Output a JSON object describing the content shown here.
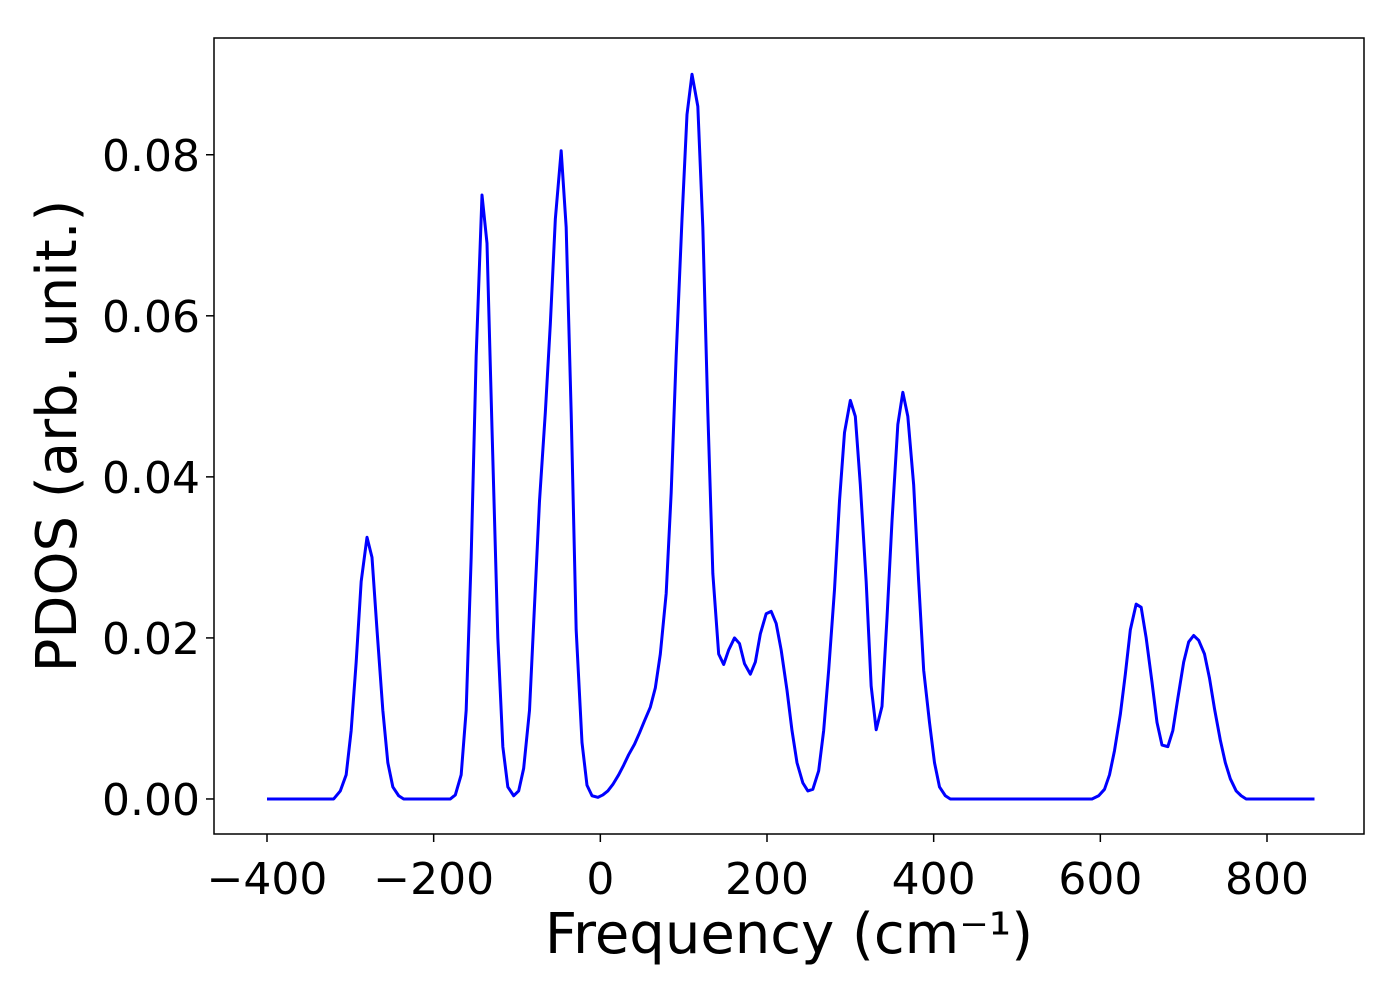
{
  "chart_data": {
    "type": "line",
    "xlabel": "Frequency (cm⁻¹)",
    "ylabel": "PDOS (arb. unit.)",
    "x": [
      -400,
      -320,
      -312,
      -305,
      -299,
      -293,
      -287,
      -280,
      -274,
      -268,
      -261,
      -255,
      -249,
      -242,
      -236,
      -180,
      -174,
      -167,
      -161,
      -155,
      -149,
      -142,
      -136,
      -130,
      -123,
      -117,
      -111,
      -104,
      -98,
      -92,
      -85,
      -79,
      -73,
      -66,
      -60,
      -54,
      -47,
      -41,
      -35,
      -29,
      -22,
      -16,
      -10,
      -3,
      3,
      9,
      15,
      22,
      28,
      34,
      41,
      47,
      53,
      60,
      66,
      72,
      79,
      85,
      91,
      98,
      104,
      110,
      117,
      123,
      129,
      135,
      142,
      148,
      154,
      161,
      167,
      173,
      180,
      186,
      192,
      199,
      205,
      211,
      217,
      224,
      230,
      236,
      243,
      249,
      255,
      262,
      268,
      274,
      281,
      287,
      293,
      300,
      306,
      312,
      319,
      325,
      331,
      338,
      344,
      350,
      357,
      363,
      369,
      376,
      382,
      388,
      395,
      401,
      407,
      414,
      420,
      590,
      598,
      605,
      611,
      617,
      624,
      630,
      636,
      643,
      649,
      655,
      662,
      668,
      674,
      681,
      687,
      693,
      700,
      706,
      712,
      718,
      725,
      731,
      737,
      744,
      750,
      756,
      763,
      769,
      775,
      857
    ],
    "series": [
      {
        "name": "PDOS",
        "color": "#0000ff",
        "values": [
          0,
          0,
          0.001,
          0.003,
          0.0085,
          0.017,
          0.027,
          0.0325,
          0.03,
          0.021,
          0.011,
          0.0045,
          0.0015,
          0.0004,
          0,
          0,
          0.0005,
          0.003,
          0.011,
          0.03,
          0.055,
          0.075,
          0.069,
          0.046,
          0.02,
          0.0065,
          0.0015,
          0.0004,
          0.001,
          0.0038,
          0.011,
          0.024,
          0.037,
          0.048,
          0.059,
          0.072,
          0.0805,
          0.071,
          0.048,
          0.021,
          0.007,
          0.0017,
          0.0004,
          0.0002,
          0.0005,
          0.001,
          0.0018,
          0.003,
          0.0042,
          0.0055,
          0.0068,
          0.0082,
          0.0097,
          0.0114,
          0.0138,
          0.018,
          0.0255,
          0.038,
          0.055,
          0.072,
          0.085,
          0.09,
          0.086,
          0.071,
          0.048,
          0.028,
          0.018,
          0.0167,
          0.0185,
          0.02,
          0.0193,
          0.0168,
          0.0155,
          0.017,
          0.0205,
          0.023,
          0.0233,
          0.0218,
          0.0185,
          0.0135,
          0.0085,
          0.0045,
          0.002,
          0.001,
          0.0012,
          0.0035,
          0.0085,
          0.016,
          0.026,
          0.037,
          0.0455,
          0.0495,
          0.0475,
          0.039,
          0.027,
          0.014,
          0.0086,
          0.0115,
          0.0225,
          0.0345,
          0.0465,
          0.0505,
          0.0475,
          0.039,
          0.027,
          0.016,
          0.0095,
          0.0045,
          0.0015,
          0.0004,
          0,
          0,
          0.0004,
          0.0012,
          0.003,
          0.006,
          0.0105,
          0.0155,
          0.021,
          0.0242,
          0.0238,
          0.02,
          0.0145,
          0.0095,
          0.0067,
          0.0065,
          0.0085,
          0.0125,
          0.017,
          0.0195,
          0.0203,
          0.0197,
          0.018,
          0.015,
          0.0112,
          0.0073,
          0.0045,
          0.0025,
          0.001,
          0.0004,
          0,
          0
        ]
      }
    ],
    "xlim": [
      -463.6,
      916.4
    ],
    "xticks": [
      {
        "value": -400,
        "label": "−400"
      },
      {
        "value": -200,
        "label": "−200"
      },
      0,
      200,
      400,
      600,
      800
    ],
    "ylim": [
      -0.00435,
      0.0945
    ],
    "yticks": [
      {
        "value": 0,
        "label": "0.00"
      },
      0.02,
      0.04,
      0.06,
      0.08
    ],
    "grid": false
  }
}
